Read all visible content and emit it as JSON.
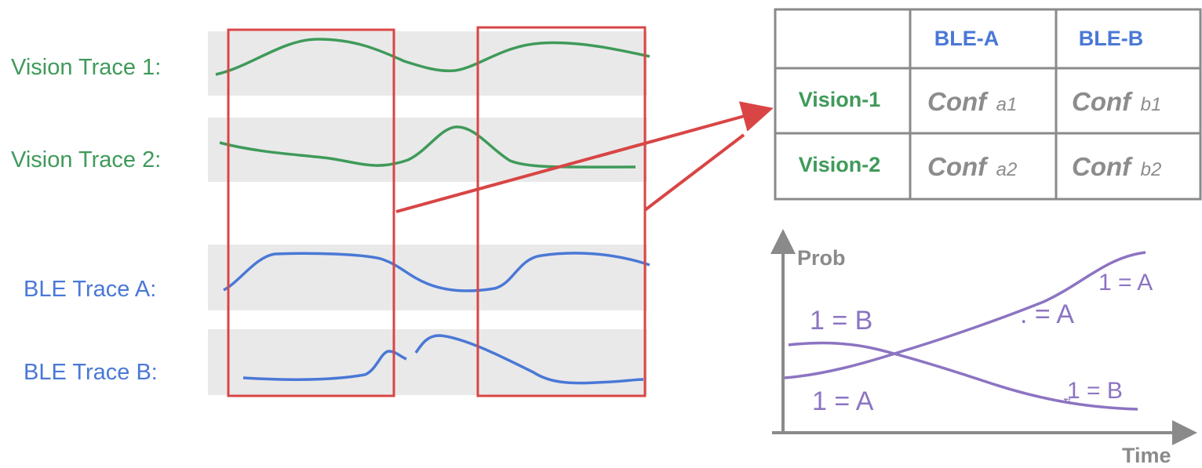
{
  "colors": {
    "vision": "#3f9a5a",
    "ble": "#4a78d6",
    "window": "#d94545",
    "band": "#e9e9e9",
    "table_border": "#8a8a8a",
    "conf_text": "#8c8c8c",
    "prob_curve": "#8c74c2",
    "axis": "#8a8a8a"
  },
  "trace_labels": {
    "vision_1": "Vision Trace 1:",
    "vision_2": "Vision Trace 2:",
    "ble_a": "BLE Trace A:",
    "ble_b": "BLE Trace B:"
  },
  "table": {
    "col_headers": [
      "BLE-A",
      "BLE-B"
    ],
    "rows": [
      {
        "label": "Vision-1",
        "cells": [
          {
            "main": "Conf",
            "sub": "a1"
          },
          {
            "main": "Conf",
            "sub": "b1"
          }
        ]
      },
      {
        "label": "Vision-2",
        "cells": [
          {
            "main": "Conf",
            "sub": "a2"
          },
          {
            "main": "Conf",
            "sub": "b2"
          }
        ]
      }
    ]
  },
  "prob_chart": {
    "ylabel": "Prob",
    "xlabel": "Time",
    "labels": [
      "1 = B",
      "1 = A",
      "1 = A",
      ". = A",
      "ֳ1 = B"
    ]
  }
}
